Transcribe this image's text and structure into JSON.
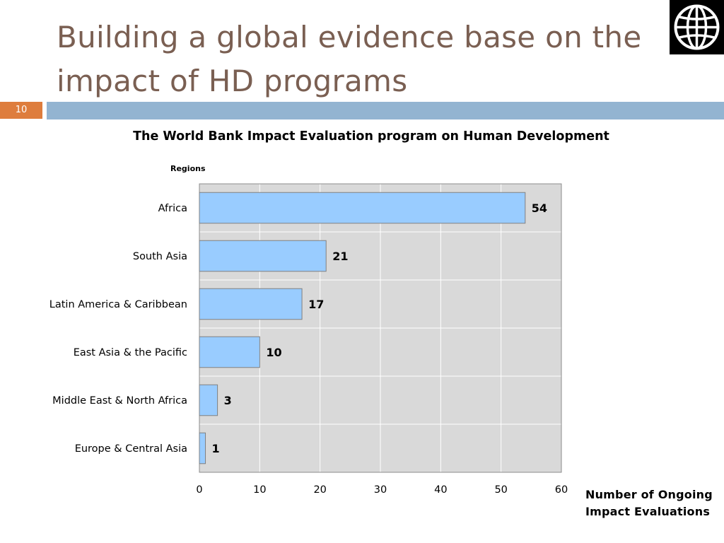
{
  "slide": {
    "title": "Building a global evidence base on the impact of HD programs",
    "number": "10"
  },
  "logo_icon": "world-bank-globe-icon",
  "colors": {
    "title": "#7a5f52",
    "band": "#93b4d1",
    "slide_number_bg": "#de7d3d",
    "bar_fill": "#99ccff",
    "bar_stroke": "#808080",
    "plot_bg": "#d9d9d9"
  },
  "chart_data": {
    "type": "bar",
    "orientation": "horizontal",
    "title": "The World Bank Impact Evaluation program on Human Development",
    "ylabel": "Regions",
    "xlabel": "Number of Ongoing Impact Evaluations",
    "categories": [
      "Africa",
      "South Asia",
      "Latin America & Caribbean",
      "East Asia & the Pacific",
      "Middle East & North Africa",
      "Europe & Central Asia"
    ],
    "values": [
      54,
      21,
      17,
      10,
      3,
      1
    ],
    "xlim": [
      0,
      60
    ],
    "xticks": [
      0,
      10,
      20,
      30,
      40,
      50,
      60
    ],
    "grid": true,
    "legend": "none"
  }
}
